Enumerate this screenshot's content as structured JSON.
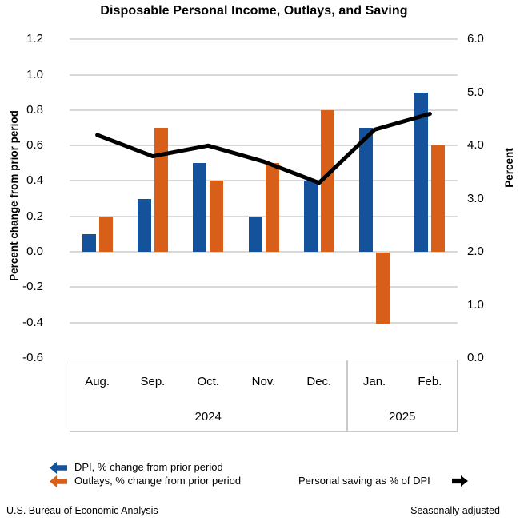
{
  "title": "Disposable Personal Income, Outlays, and Saving",
  "chart_data": {
    "type": "combo-bar-line",
    "title": "Disposable Personal Income, Outlays, and Saving",
    "categories": [
      "Aug.",
      "Sep.",
      "Oct.",
      "Nov.",
      "Dec.",
      "Jan.",
      "Feb."
    ],
    "year_groups": [
      {
        "label": "2024",
        "months": 5
      },
      {
        "label": "2025",
        "months": 2
      }
    ],
    "series": [
      {
        "name": "DPI, % change from prior period",
        "type": "bar",
        "axis": "left",
        "color": "#15529c",
        "values": [
          0.1,
          0.3,
          0.5,
          0.2,
          0.4,
          0.7,
          0.9
        ]
      },
      {
        "name": "Outlays, % change from prior period",
        "type": "bar",
        "axis": "left",
        "color": "#d85f1a",
        "values": [
          0.2,
          0.7,
          0.4,
          0.5,
          0.8,
          -0.4,
          0.6
        ]
      },
      {
        "name": "Personal saving as % of DPI",
        "type": "line",
        "axis": "right",
        "color": "#000000",
        "values": [
          4.2,
          3.8,
          4.0,
          3.7,
          3.3,
          4.3,
          4.6
        ]
      }
    ],
    "left_axis": {
      "label": "Percent change from prior period",
      "min": -0.6,
      "max": 1.2,
      "tick_step": 0.2,
      "ticks": [
        "1.2",
        "1.0",
        "0.8",
        "0.6",
        "0.4",
        "0.2",
        "0.0",
        "-0.2",
        "-0.4",
        "-0.6"
      ]
    },
    "right_axis": {
      "label": "Percent",
      "min": 0.0,
      "max": 6.0,
      "tick_step": 1.0,
      "ticks": [
        "6.0",
        "5.0",
        "4.0",
        "3.0",
        "2.0",
        "1.0",
        "0.0"
      ]
    },
    "grid": true,
    "legend_position": "bottom"
  },
  "legend": {
    "bar_axis_arrow_direction": "left",
    "line_axis_arrow_direction": "right"
  },
  "footer": {
    "source": "U.S. Bureau of Economic Analysis",
    "note": "Seasonally adjusted"
  }
}
